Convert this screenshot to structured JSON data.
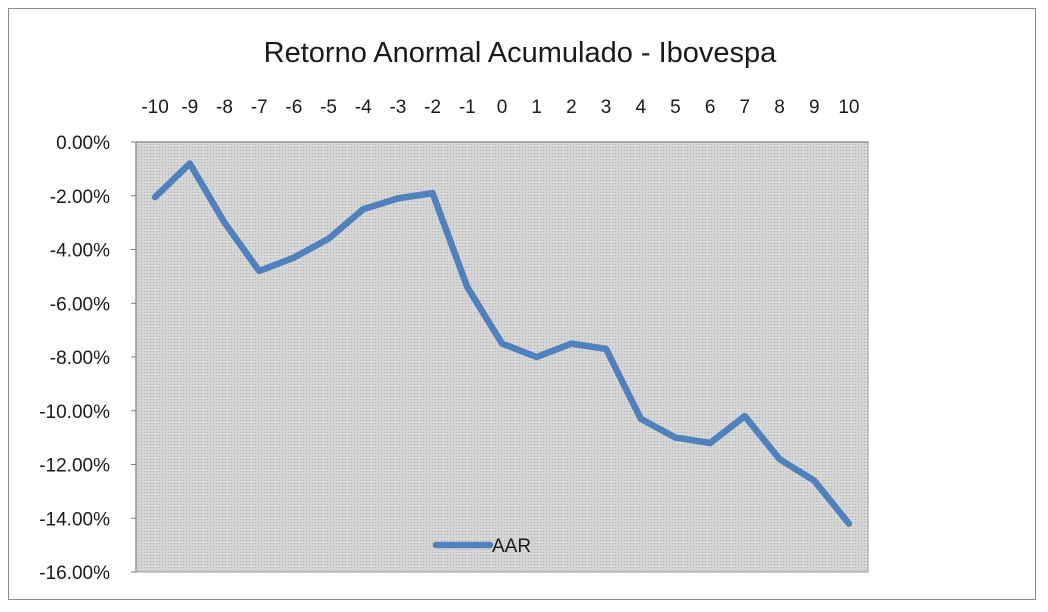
{
  "chart_data": {
    "type": "line",
    "title": "Retorno Anormal Acumulado - Ibovespa",
    "x": [
      -10,
      -9,
      -8,
      -7,
      -6,
      -5,
      -4,
      -3,
      -2,
      -1,
      0,
      1,
      2,
      3,
      4,
      5,
      6,
      7,
      8,
      9,
      10
    ],
    "x_tick_labels": [
      "-10",
      "-9",
      "-8",
      "-7",
      "-6",
      "-5",
      "-4",
      "-3",
      "-2",
      "-1",
      "0",
      "1",
      "2",
      "3",
      "4",
      "5",
      "6",
      "7",
      "8",
      "9",
      "10"
    ],
    "y_tick_labels": [
      "0.00%",
      "-2.00%",
      "-4.00%",
      "-6.00%",
      "-8.00%",
      "-10.00%",
      "-12.00%",
      "-14.00%",
      "-16.00%"
    ],
    "y_ticks": [
      0,
      -2,
      -4,
      -6,
      -8,
      -10,
      -12,
      -14,
      -16
    ],
    "ylim": [
      -16,
      0
    ],
    "y_unit": "percent",
    "x_axis_position": "top",
    "grid": false,
    "legend_position": "bottom-center-inside",
    "series": [
      {
        "name": "AAR",
        "color": "#4f81bd",
        "values": [
          -2.05,
          -0.8,
          -3.0,
          -4.8,
          -4.3,
          -3.6,
          -2.5,
          -2.1,
          -1.9,
          -5.4,
          -7.5,
          -8.0,
          -7.5,
          -7.7,
          -10.3,
          -11.0,
          -11.2,
          -10.2,
          -11.8,
          -12.6,
          -14.2
        ]
      }
    ],
    "plot_background": "#d4d4d4"
  }
}
